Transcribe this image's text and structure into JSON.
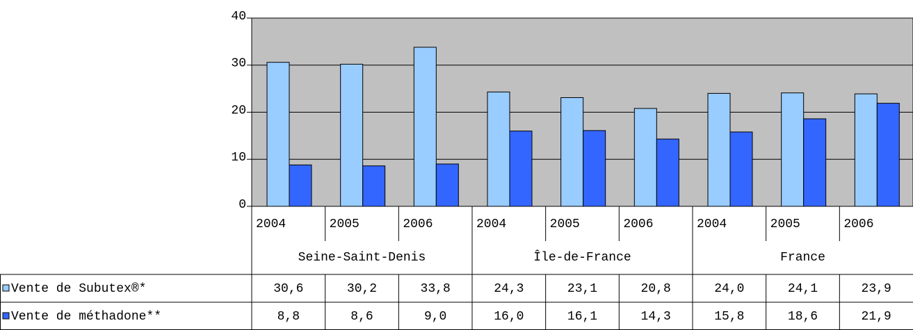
{
  "chart_data": {
    "type": "bar",
    "groups": [
      {
        "name": "Seine-Saint-Denis",
        "categories": [
          "2004",
          "2005",
          "2006"
        ]
      },
      {
        "name": "Île-de-France",
        "categories": [
          "2004",
          "2005",
          "2006"
        ]
      },
      {
        "name": "France",
        "categories": [
          "2004",
          "2005",
          "2006"
        ]
      }
    ],
    "series": [
      {
        "name": "Vente de Subutex®*",
        "color": "#99ccff",
        "values": [
          30.6,
          30.2,
          33.8,
          24.3,
          23.1,
          20.8,
          24.0,
          24.1,
          23.9
        ],
        "value_labels": [
          "30,6",
          "30,2",
          "33,8",
          "24,3",
          "23,1",
          "20,8",
          "24,0",
          "24,1",
          "23,9"
        ]
      },
      {
        "name": "Vente de méthadone**",
        "color": "#3366ff",
        "values": [
          8.8,
          8.6,
          9.0,
          16.0,
          16.1,
          14.3,
          15.8,
          18.6,
          21.9
        ],
        "value_labels": [
          "8,8",
          "8,6",
          "9,0",
          "16,0",
          "16,1",
          "14,3",
          "15,8",
          "18,6",
          "21,9"
        ]
      }
    ],
    "ylim": [
      0,
      40
    ],
    "yticks": [
      0,
      10,
      20,
      30,
      40
    ],
    "grid": true,
    "plot_background": "#c0c0c0"
  }
}
